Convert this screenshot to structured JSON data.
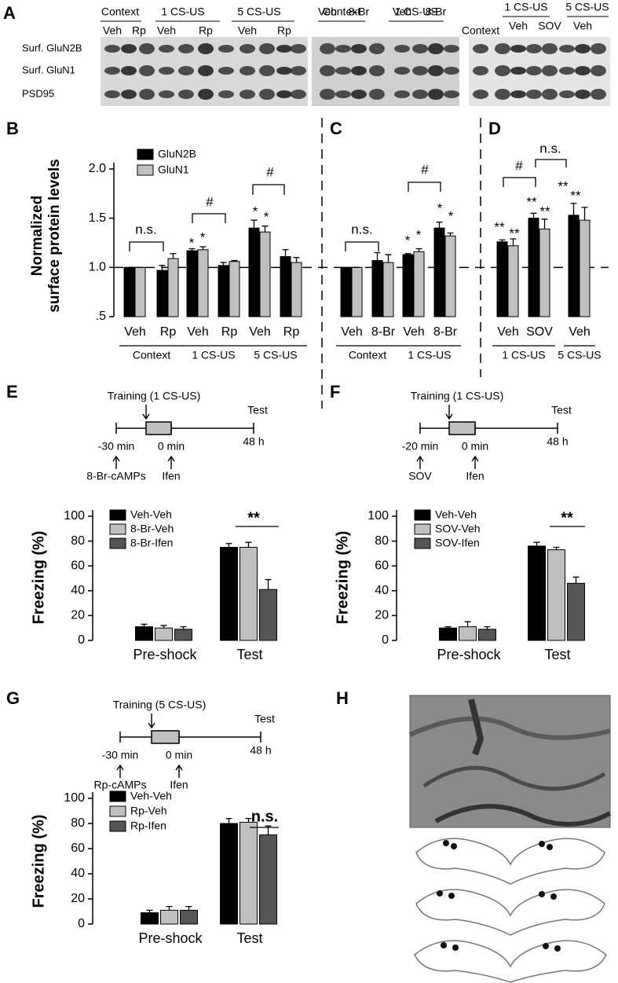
{
  "blot": {
    "panel": "A",
    "group_labels": [
      "Context",
      "1 CS-US",
      "5 CS-US",
      "Context",
      "1 CS-US",
      "1 CS-US",
      "5 CS-US"
    ],
    "lane_labels": [
      "Veh",
      "Rp",
      "Veh",
      "Rp",
      "Veh",
      "Rp",
      "Veh",
      "8-Br",
      "Veh",
      "8-Br",
      "Context",
      "Veh",
      "SOV",
      "Veh"
    ],
    "row_labels": [
      "Surf. GluN2B",
      "Surf. GluN1",
      "PSD95"
    ]
  },
  "chart_data": [
    {
      "type": "bar",
      "panel": "B",
      "ylabel": [
        "Normalized",
        "surface protein levels"
      ],
      "ylim": [
        0.5,
        2.0
      ],
      "yticks": [
        {
          "value": 0.5,
          "label": ".5"
        },
        {
          "value": 1,
          "label": "1.0"
        },
        1.5,
        {
          "value": 2,
          "label": "2.0"
        }
      ],
      "reference_line": 1,
      "legend": true,
      "groups": [
        {
          "label": "Context",
          "categories": [
            "Veh",
            "Rp"
          ]
        },
        {
          "label": "1 CS-US",
          "categories": [
            "Veh",
            "Rp"
          ]
        },
        {
          "label": "5 CS-US",
          "categories": [
            "Veh",
            "Rp"
          ]
        }
      ],
      "series": [
        {
          "name": "GluN2B",
          "color": "#000000",
          "values": [
            1.0,
            0.97,
            1.17,
            1.02,
            1.4,
            1.11
          ],
          "errors": [
            0,
            0.05,
            0.02,
            0.03,
            0.08,
            0.07
          ]
        },
        {
          "name": "GluN1",
          "color": "#c0c0c0",
          "values": [
            1.0,
            1.09,
            1.18,
            1.06,
            1.36,
            1.05
          ],
          "errors": [
            0,
            0.05,
            0.03,
            0.01,
            0.06,
            0.05
          ]
        }
      ],
      "annotations": [
        "n.s.",
        "*",
        "*",
        "#",
        "*",
        "*",
        "#"
      ]
    },
    {
      "type": "bar",
      "panel": "C",
      "ylim": [
        0.5,
        2.0
      ],
      "groups": [
        {
          "label": "Context",
          "categories": [
            "Veh",
            "8-Br"
          ]
        },
        {
          "label": "1 CS-US",
          "categories": [
            "Veh",
            "8-Br"
          ]
        }
      ],
      "series": [
        {
          "color": "#000000",
          "values": [
            1.0,
            1.07,
            1.13,
            1.4
          ],
          "errors": [
            0,
            0.08,
            0.01,
            0.06
          ]
        },
        {
          "color": "#c0c0c0",
          "values": [
            1.0,
            1.05,
            1.16,
            1.32
          ],
          "errors": [
            0,
            0.08,
            0.03,
            0.03
          ]
        }
      ],
      "annotations": [
        "n.s.",
        "*",
        "*",
        "#",
        "*",
        "*"
      ]
    },
    {
      "type": "bar",
      "panel": "D",
      "ylim": [
        0.5,
        2.0
      ],
      "groups": [
        {
          "label": "1 CS-US",
          "categories": [
            "Veh",
            "SOV"
          ]
        },
        {
          "label": "5 CS-US",
          "categories": [
            "Veh"
          ]
        }
      ],
      "series": [
        {
          "color": "#000000",
          "values": [
            1.26,
            1.5,
            1.53
          ],
          "errors": [
            0.02,
            0.05,
            0.12
          ]
        },
        {
          "color": "#c0c0c0",
          "values": [
            1.22,
            1.39,
            1.48
          ],
          "errors": [
            0.07,
            0.1,
            0.13
          ]
        }
      ],
      "annotations": [
        "**",
        "**",
        "#",
        "n.s.",
        "**",
        "**",
        "**",
        "**"
      ]
    },
    {
      "type": "bar",
      "panel": "E",
      "ylabel": [
        "Freezing (%)"
      ],
      "ylim": [
        0,
        100
      ],
      "yticks": [
        0,
        20,
        40,
        60,
        80,
        100
      ],
      "legend": true,
      "categories": [
        "Pre-shock",
        "Test"
      ],
      "series": [
        {
          "name": "Veh-Veh",
          "color": "#000000",
          "values": [
            11,
            75
          ],
          "errors": [
            2,
            3
          ]
        },
        {
          "name": "8-Br-Veh",
          "color": "#c0c0c0",
          "values": [
            10,
            75
          ],
          "errors": [
            2,
            4
          ]
        },
        {
          "name": "8-Br-Ifen",
          "color": "#555555",
          "values": [
            9,
            41
          ],
          "errors": [
            2,
            8
          ]
        }
      ],
      "annotations": [
        "**"
      ]
    },
    {
      "type": "bar",
      "panel": "F",
      "ylabel": [
        "Freezing (%)"
      ],
      "ylim": [
        0,
        100
      ],
      "yticks": [
        0,
        20,
        40,
        60,
        80,
        100
      ],
      "legend": true,
      "categories": [
        "Pre-shock",
        "Test"
      ],
      "series": [
        {
          "name": "Veh-Veh",
          "color": "#000000",
          "values": [
            10,
            76
          ],
          "errors": [
            1,
            3
          ]
        },
        {
          "name": "SOV-Veh",
          "color": "#c0c0c0",
          "values": [
            11,
            73
          ],
          "errors": [
            4,
            2
          ]
        },
        {
          "name": "SOV-Ifen",
          "color": "#555555",
          "values": [
            9,
            46
          ],
          "errors": [
            2,
            5
          ]
        }
      ],
      "annotations": [
        "**"
      ]
    },
    {
      "type": "bar",
      "panel": "G",
      "ylabel": [
        "Freezing (%)"
      ],
      "ylim": [
        0,
        100
      ],
      "yticks": [
        0,
        20,
        40,
        60,
        80,
        100
      ],
      "legend": true,
      "categories": [
        "Pre-shock",
        "Test"
      ],
      "series": [
        {
          "name": "Veh-Veh",
          "color": "#000000",
          "values": [
            9,
            80
          ],
          "errors": [
            2,
            4
          ]
        },
        {
          "name": "Rp-Veh",
          "color": "#c0c0c0",
          "values": [
            11,
            81
          ],
          "errors": [
            3,
            3
          ]
        },
        {
          "name": "Rp-Ifen",
          "color": "#555555",
          "values": [
            11,
            71
          ],
          "errors": [
            3,
            7
          ]
        }
      ],
      "annotations": [
        "n.s."
      ]
    }
  ],
  "timelines": [
    {
      "training": "Training (1 CS-US)",
      "test": "Test",
      "times": [
        "-30 min",
        "0 min",
        "48 h"
      ],
      "drugs": [
        "8-Br-cAMPs",
        "Ifen"
      ]
    },
    {
      "training": "Training (1 CS-US)",
      "test": "Test",
      "times": [
        "-20 min",
        "0 min",
        "48 h"
      ],
      "drugs": [
        "SOV",
        "Ifen"
      ]
    },
    {
      "training": "Training (5 CS-US)",
      "test": "Test",
      "times": [
        "-30 min",
        "0 min",
        "48 h"
      ],
      "drugs": [
        "Rp-cAMPs",
        "Ifen"
      ]
    }
  ],
  "histology": {
    "panel": "H"
  }
}
